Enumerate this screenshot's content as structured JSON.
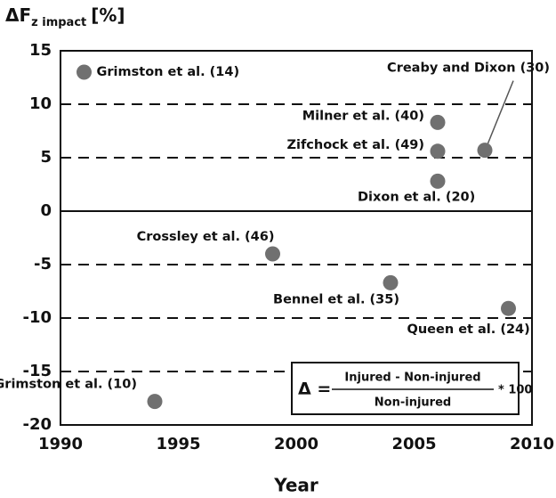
{
  "chart_data": {
    "type": "scatter",
    "ylabel": {
      "main": "ΔF",
      "sub": "z impact",
      "unit": "[%]"
    },
    "xlabel": "Year",
    "labels": [
      "Grimston et al. (14)",
      "Grimston et al. (10)",
      "Crossley et al. (46)",
      "Bennel et al. (35)",
      "Queen et al. (24)",
      "Milner et al. (40)",
      "Zifchock et al. (49)",
      "Dixon et al. (20)",
      "Creaby and Dixon (30)"
    ],
    "x": [
      1991,
      1994,
      1999,
      2004,
      2009,
      2006,
      2006,
      2006,
      2008
    ],
    "y": [
      13,
      -17.8,
      -4,
      -6.7,
      -9.1,
      8.3,
      5.6,
      2.8,
      5.7
    ],
    "color": "#707070",
    "xlim": [
      1990,
      2010
    ],
    "xticks": [
      1990,
      1995,
      2000,
      2005,
      2010
    ],
    "ylim": [
      -20,
      15
    ],
    "yticks": [
      -20,
      -15,
      -10,
      -5,
      0,
      5,
      10,
      15
    ],
    "grid": true,
    "formula": {
      "lhs": "Δ =",
      "numerator": "Injured - Non-injured",
      "denominator": "Non-injured",
      "factor": "* 100"
    }
  }
}
